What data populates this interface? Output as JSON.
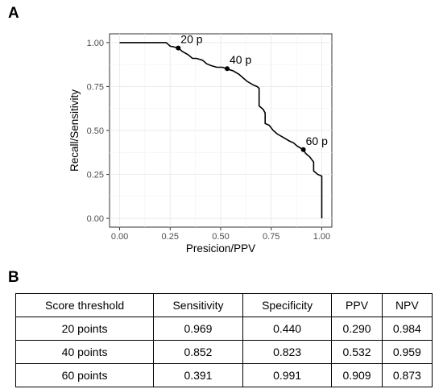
{
  "panel_labels": {
    "a": "A",
    "b": "B"
  },
  "chart_data": {
    "type": "line",
    "xlabel": "Presicion/PPV",
    "ylabel": "Recall/Sensitivity",
    "xlim": [
      -0.05,
      1.05
    ],
    "ylim": [
      -0.05,
      1.05
    ],
    "x_ticks": [
      "0.00",
      "0.25",
      "0.50",
      "0.75",
      "1.00"
    ],
    "y_ticks": [
      "0.00",
      "0.25",
      "0.50",
      "0.75",
      "1.00"
    ],
    "grid": true,
    "series": [
      {
        "x": [
          0.0,
          0.23,
          0.25,
          0.29,
          0.31,
          0.34,
          0.36,
          0.38,
          0.41,
          0.43,
          0.45,
          0.48,
          0.51,
          0.53,
          0.56,
          0.59,
          0.61,
          0.63,
          0.66,
          0.68,
          0.69,
          0.69,
          0.71,
          0.72,
          0.72,
          0.74,
          0.76,
          0.78,
          0.81,
          0.84,
          0.86,
          0.88,
          0.91,
          0.92,
          0.94,
          0.96,
          0.96,
          0.98,
          1.0,
          1.0
        ],
        "y": [
          1.0,
          1.0,
          0.98,
          0.97,
          0.95,
          0.93,
          0.91,
          0.91,
          0.9,
          0.88,
          0.87,
          0.86,
          0.86,
          0.85,
          0.84,
          0.82,
          0.8,
          0.78,
          0.76,
          0.75,
          0.74,
          0.64,
          0.62,
          0.6,
          0.54,
          0.53,
          0.5,
          0.48,
          0.46,
          0.44,
          0.43,
          0.41,
          0.39,
          0.37,
          0.35,
          0.32,
          0.27,
          0.25,
          0.24,
          0.0
        ]
      }
    ],
    "points": [
      {
        "label": "20 p",
        "x": 0.29,
        "y": 0.969
      },
      {
        "label": "40 p",
        "x": 0.532,
        "y": 0.852
      },
      {
        "label": "60 p",
        "x": 0.909,
        "y": 0.391
      }
    ]
  },
  "table": {
    "headers": [
      "Score threshold",
      "Sensitivity",
      "Specificity",
      "PPV",
      "NPV"
    ],
    "rows": [
      [
        "20 points",
        "0.969",
        "0.440",
        "0.290",
        "0.984"
      ],
      [
        "40 points",
        "0.852",
        "0.823",
        "0.532",
        "0.959"
      ],
      [
        "60 points",
        "0.391",
        "0.991",
        "0.909",
        "0.873"
      ]
    ]
  }
}
